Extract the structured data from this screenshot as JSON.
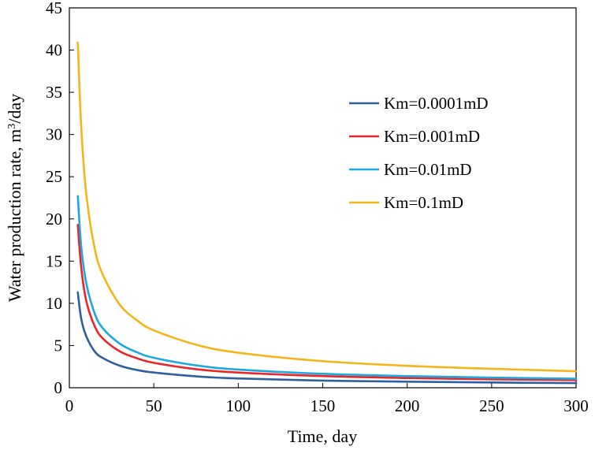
{
  "chart_data": {
    "type": "line",
    "title": "",
    "xlabel": "Time, day",
    "ylabel_main": "Water production rate, m",
    "ylabel_sup": "3",
    "ylabel_tail": "/day",
    "xlim": [
      0,
      300
    ],
    "ylim": [
      0,
      45
    ],
    "xticks": [
      "0",
      "50",
      "100",
      "150",
      "200",
      "250",
      "300"
    ],
    "yticks": [
      "0",
      "5",
      "10",
      "15",
      "20",
      "25",
      "30",
      "35",
      "40",
      "45"
    ],
    "grid": false,
    "legend_position": "right",
    "x": [
      5,
      7,
      10,
      15,
      20,
      30,
      40,
      50,
      75,
      100,
      150,
      200,
      250,
      300
    ],
    "series": [
      {
        "name": "Km=0.0001mD",
        "color": "#2e5f9e",
        "values": [
          11.3,
          8.2,
          6.1,
          4.3,
          3.5,
          2.6,
          2.1,
          1.8,
          1.35,
          1.1,
          0.85,
          0.72,
          0.62,
          0.55
        ]
      },
      {
        "name": "Km=0.001mD",
        "color": "#e8262a",
        "values": [
          19.3,
          14.3,
          10.3,
          7.3,
          5.8,
          4.3,
          3.5,
          2.95,
          2.2,
          1.8,
          1.38,
          1.15,
          1.0,
          0.9
        ]
      },
      {
        "name": "Km=0.01mD",
        "color": "#1ea8e0",
        "values": [
          22.7,
          16.8,
          12.4,
          8.8,
          7.0,
          5.2,
          4.2,
          3.55,
          2.65,
          2.15,
          1.65,
          1.38,
          1.2,
          1.07
        ]
      },
      {
        "name": "Km=0.1mD",
        "color": "#f4b41a",
        "values": [
          40.9,
          31.0,
          23.0,
          16.5,
          13.3,
          9.8,
          8.0,
          6.8,
          5.1,
          4.15,
          3.15,
          2.6,
          2.25,
          1.95
        ]
      }
    ]
  }
}
